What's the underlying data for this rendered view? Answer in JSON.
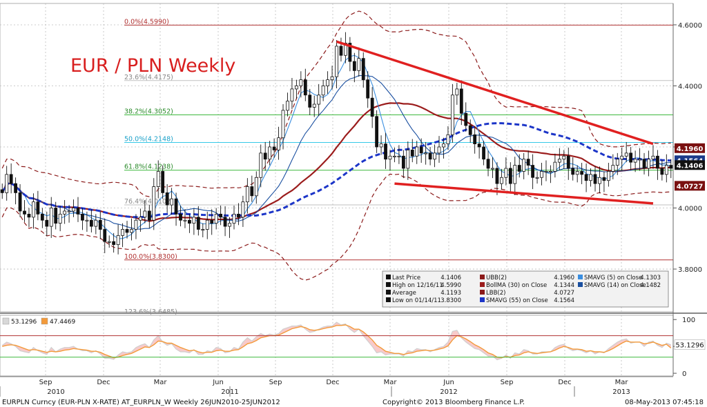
{
  "chart_data": {
    "type": "candlestick",
    "title": "EUR / PLN Weekly",
    "price_axis": {
      "ylim": [
        3.66,
        4.67
      ],
      "ticks": [
        "4.6000",
        "4.4000",
        "4.2000",
        "4.0000",
        "3.8000"
      ],
      "tick_values": [
        4.6,
        4.4,
        4.2,
        4.0,
        3.8
      ]
    },
    "time_axis": {
      "tick_labels": [
        "Sep",
        "Dec",
        "Mar",
        "Jun",
        "Sep",
        "Dec",
        "Mar",
        "Jun",
        "Sep",
        "Dec",
        "Mar"
      ],
      "year_labels": [
        "2010",
        "2011",
        "2012",
        "2013"
      ],
      "range_weeks": [
        0,
        150
      ]
    },
    "fibonacci": [
      {
        "label": "0.0%(4.5990)",
        "value": 4.599,
        "color": "#b03030"
      },
      {
        "label": "23.6%(4.4175)",
        "value": 4.4175,
        "color": "#c0c0c0"
      },
      {
        "label": "38.2%(4.3052)",
        "value": 4.3052,
        "color": "#3cb83c"
      },
      {
        "label": "50.0%(4.2148)",
        "value": 4.2148,
        "color": "#35c8e8"
      },
      {
        "label": "61.8%(4.1238)",
        "value": 4.1238,
        "color": "#3cb83c"
      },
      {
        "label": "76.4%(4.0102)",
        "value": 4.0102,
        "color": "#c0c0c0"
      },
      {
        "label": "100.0%(3.8300)",
        "value": 3.83,
        "color": "#b03030"
      },
      {
        "label": "123.6%(3.6485)",
        "value": 3.6485,
        "color": "#c0c0c0"
      }
    ],
    "series_close": [
      4.05,
      4.11,
      4.08,
      4.05,
      3.99,
      3.98,
      3.97,
      4.02,
      3.98,
      3.96,
      3.94,
      4.0,
      3.95,
      3.98,
      3.99,
      3.99,
      4.0,
      3.98,
      3.96,
      3.96,
      3.94,
      3.96,
      3.93,
      3.89,
      3.89,
      3.88,
      3.91,
      3.93,
      3.92,
      3.93,
      3.96,
      3.97,
      3.99,
      3.96,
      4.07,
      4.12,
      4.05,
      4.01,
      4.03,
      3.98,
      3.96,
      3.96,
      3.95,
      3.97,
      3.93,
      3.93,
      3.96,
      3.95,
      3.98,
      3.97,
      3.94,
      3.95,
      3.98,
      3.97,
      4.02,
      4.07,
      4.04,
      4.1,
      4.18,
      4.16,
      4.2,
      4.19,
      4.23,
      4.32,
      4.35,
      4.39,
      4.4,
      4.42,
      4.37,
      4.33,
      4.34,
      4.37,
      4.4,
      4.42,
      4.43,
      4.53,
      4.5,
      4.54,
      4.48,
      4.45,
      4.49,
      4.42,
      4.36,
      4.3,
      4.2,
      4.21,
      4.16,
      4.17,
      4.17,
      4.17,
      4.13,
      4.19,
      4.17,
      4.2,
      4.18,
      4.18,
      4.16,
      4.18,
      4.2,
      4.21,
      4.24,
      4.37,
      4.39,
      4.31,
      4.27,
      4.24,
      4.21,
      4.2,
      4.16,
      4.13,
      4.13,
      4.08,
      4.1,
      4.13,
      4.08,
      4.14,
      4.12,
      4.16,
      4.14,
      4.1,
      4.1,
      4.12,
      4.12,
      4.12,
      4.15,
      4.16,
      4.17,
      4.13,
      4.11,
      4.12,
      4.11,
      4.09,
      4.11,
      4.08,
      4.1,
      4.09,
      4.12,
      4.14,
      4.16,
      4.17,
      4.18,
      4.15,
      4.16,
      4.16,
      4.13,
      4.16,
      4.17,
      4.13,
      4.11,
      4.14,
      4.13
    ],
    "trendlines": [
      {
        "name": "upper-resistance",
        "from": [
          75,
          4.545
        ],
        "to": [
          146,
          4.21
        ]
      },
      {
        "name": "lower-support",
        "from": [
          88,
          4.08
        ],
        "to": [
          146,
          4.015
        ]
      }
    ],
    "price_markers": [
      {
        "value": 4.196,
        "label": "4.1960",
        "bg": "#7a1010"
      },
      {
        "value": 4.1564,
        "label": "4.1564",
        "bg": "#1a3a8a"
      },
      {
        "value": 4.1406,
        "label": "4.1406",
        "bg": "#111111"
      },
      {
        "value": 4.0727,
        "label": "4.0727",
        "bg": "#7a1010"
      }
    ],
    "legend": {
      "position": "bottom-right",
      "rows": [
        [
          {
            "label": "Last Price",
            "value": "4.1406"
          },
          {
            "label": "UBB(2)",
            "value": "4.1960"
          },
          {
            "label": "SMAVG (5) on Close",
            "value": "4.1303"
          }
        ],
        [
          {
            "label": "High on 12/16/11",
            "value": "4.5990"
          },
          {
            "label": "BollMA (30) on Close",
            "value": "4.1344"
          },
          {
            "label": "SMAVG (14) on Close",
            "value": "4.1482"
          }
        ],
        [
          {
            "label": "Average",
            "value": "4.1193"
          },
          {
            "label": "LBB(2)",
            "value": "4.0727"
          }
        ],
        [
          {
            "label": "Low on 01/14/11",
            "value": "3.8300"
          },
          {
            "label": "SMAVG (55) on Close",
            "value": "4.1564"
          }
        ]
      ]
    },
    "indicator": {
      "ylim": [
        -5,
        108
      ],
      "ticks": [
        "100",
        "50",
        "0"
      ],
      "tick_values": [
        100,
        50,
        0
      ],
      "levels": [
        70,
        30
      ],
      "legend": [
        {
          "label": "53.1296",
          "color": "#d8d8d8"
        },
        {
          "label": "47.4469",
          "color": "#f39a3a"
        }
      ],
      "marker_label": "53.1296",
      "line1": [
        52,
        58,
        55,
        50,
        42,
        40,
        38,
        48,
        42,
        38,
        35,
        48,
        40,
        45,
        48,
        48,
        50,
        45,
        42,
        42,
        38,
        42,
        36,
        28,
        28,
        26,
        34,
        40,
        38,
        40,
        48,
        52,
        55,
        48,
        62,
        70,
        58,
        52,
        55,
        45,
        40,
        40,
        38,
        44,
        35,
        35,
        42,
        40,
        48,
        46,
        38,
        40,
        48,
        45,
        58,
        66,
        60,
        68,
        74,
        70,
        73,
        71,
        74,
        82,
        85,
        88,
        88,
        90,
        82,
        76,
        78,
        82,
        86,
        88,
        88,
        95,
        90,
        92,
        82,
        76,
        82,
        70,
        60,
        50,
        38,
        40,
        34,
        36,
        36,
        36,
        32,
        42,
        40,
        46,
        44,
        44,
        40,
        44,
        48,
        50,
        58,
        78,
        80,
        66,
        58,
        52,
        46,
        44,
        38,
        32,
        32,
        25,
        28,
        34,
        28,
        38,
        36,
        44,
        42,
        36,
        36,
        40,
        40,
        40,
        48,
        52,
        54,
        46,
        42,
        44,
        42,
        38,
        42,
        36,
        40,
        38,
        46,
        52,
        58,
        62,
        64,
        56,
        58,
        58,
        50,
        58,
        60,
        52,
        48,
        56,
        53
      ],
      "line2": [
        50,
        52,
        53,
        52,
        49,
        46,
        43,
        44,
        43,
        41,
        39,
        41,
        40,
        41,
        43,
        44,
        46,
        45,
        44,
        43,
        41,
        41,
        39,
        35,
        32,
        29,
        30,
        33,
        35,
        37,
        41,
        45,
        49,
        48,
        53,
        60,
        59,
        56,
        56,
        52,
        48,
        45,
        42,
        43,
        40,
        38,
        39,
        39,
        42,
        43,
        41,
        41,
        43,
        44,
        49,
        55,
        57,
        61,
        66,
        68,
        70,
        70,
        71,
        75,
        79,
        83,
        85,
        87,
        85,
        81,
        80,
        81,
        83,
        85,
        86,
        89,
        89,
        90,
        87,
        82,
        82,
        77,
        70,
        62,
        52,
        47,
        41,
        39,
        37,
        37,
        35,
        37,
        38,
        41,
        42,
        43,
        42,
        43,
        45,
        47,
        51,
        62,
        70,
        68,
        64,
        59,
        53,
        49,
        44,
        38,
        35,
        30,
        29,
        31,
        30,
        33,
        34,
        38,
        40,
        38,
        37,
        38,
        39,
        40,
        43,
        47,
        50,
        48,
        45,
        45,
        44,
        41,
        42,
        40,
        40,
        39,
        42,
        46,
        51,
        56,
        60,
        58,
        58,
        58,
        55,
        56,
        58,
        55,
        52,
        54,
        47
      ]
    },
    "x_axis_label_bottom": "EURPLN Curncy (EUR-PLN X-RATE) AT_EURPLN_W  Weekly 26JUN2010-25JUN2012",
    "copyright": "Copyright© 2013 Bloomberg Finance L.P.",
    "timestamp": "08-May-2013 07:45:18"
  }
}
